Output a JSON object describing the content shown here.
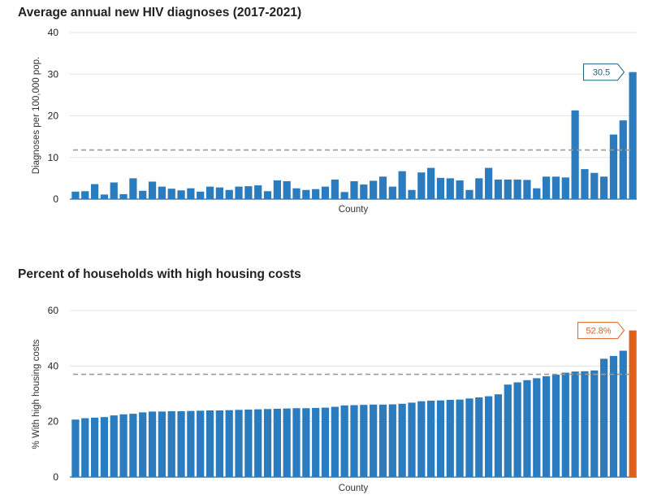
{
  "chart_data": [
    {
      "type": "bar",
      "title": "Average annual new HIV diagnoses (2017-2021)",
      "xlabel": "County",
      "ylabel": "Diagnoses per 100,000 pop.",
      "ylim": [
        0,
        40
      ],
      "yticks": [
        "0",
        "10",
        "20",
        "30",
        "40"
      ],
      "reference_line": 11.8,
      "values": [
        1.8,
        1.9,
        3.6,
        1.1,
        4.0,
        1.2,
        5.0,
        2.0,
        4.2,
        3.0,
        2.5,
        2.1,
        2.6,
        1.8,
        3.0,
        2.8,
        2.2,
        3.0,
        3.1,
        3.3,
        1.9,
        4.5,
        4.3,
        2.6,
        2.2,
        2.4,
        3.0,
        4.7,
        1.7,
        4.3,
        3.5,
        4.4,
        5.4,
        3.0,
        6.7,
        2.2,
        6.4,
        7.5,
        5.1,
        5.0,
        4.5,
        2.2,
        5.0,
        7.5,
        4.7,
        4.7,
        4.7,
        4.6,
        2.6,
        5.4,
        5.4,
        5.2,
        21.3,
        7.2,
        6.3,
        5.4,
        15.5,
        18.9,
        30.5
      ],
      "highlight_index": 58,
      "highlight_label": "30.5",
      "bar_color": "#2b7bbf",
      "highlight_color": "#2b7bbf",
      "label_color": "#1f5e7a"
    },
    {
      "type": "bar",
      "title": "Percent of households with high housing costs",
      "xlabel": "County",
      "ylabel": "% With high housing costs",
      "ylim": [
        0,
        60
      ],
      "yticks": [
        "0",
        "20",
        "40",
        "60"
      ],
      "reference_line": 37.0,
      "values": [
        20.7,
        21.2,
        21.4,
        21.6,
        22.2,
        22.6,
        22.8,
        23.3,
        23.6,
        23.6,
        23.7,
        23.7,
        23.8,
        23.9,
        24.0,
        24.0,
        24.1,
        24.2,
        24.3,
        24.4,
        24.5,
        24.6,
        24.7,
        24.8,
        24.8,
        24.9,
        25.0,
        25.3,
        25.8,
        25.9,
        26.0,
        26.1,
        26.1,
        26.2,
        26.4,
        26.8,
        27.3,
        27.5,
        27.6,
        27.8,
        27.9,
        28.3,
        28.7,
        29.1,
        29.8,
        33.3,
        34.1,
        34.9,
        35.6,
        36.3,
        36.9,
        37.6,
        38.0,
        38.1,
        38.4,
        42.6,
        43.6,
        45.5,
        52.8
      ],
      "highlight_index": 58,
      "highlight_label": "52.8%",
      "bar_color": "#2b7bbf",
      "highlight_color": "#e0611a",
      "label_color": "#e0611a"
    }
  ]
}
